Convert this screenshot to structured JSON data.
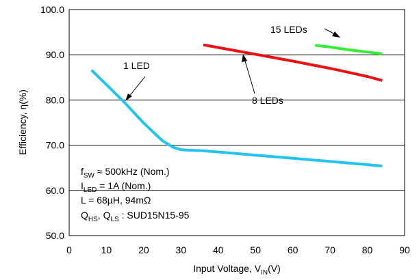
{
  "chart_data": {
    "type": "line",
    "xlabel": {
      "main": "Input Voltage, V",
      "sub": "IN",
      "suffix": "(V)"
    },
    "ylabel": "Efficiency, η(%)",
    "xlim": [
      0,
      90
    ],
    "ylim": [
      50,
      100
    ],
    "x_ticks": [
      "0",
      "10",
      "20",
      "30",
      "40",
      "50",
      "60",
      "70",
      "80",
      "90"
    ],
    "y_ticks": [
      "50.0",
      "60.0",
      "70.0",
      "80.0",
      "90.0",
      "100.0"
    ],
    "grid": {
      "horizontal": true,
      "vertical": false
    },
    "colors": {
      "1 LED": "#22c3ee",
      "8 LEDs": "#ee1111",
      "15 LEDs": "#33ee33"
    },
    "series": [
      {
        "name": "1 LED",
        "x": [
          6,
          10,
          15,
          20,
          25,
          28,
          30,
          32,
          35,
          40,
          50,
          60,
          70,
          80,
          84
        ],
        "y": [
          86.6,
          83.4,
          79.3,
          74.9,
          71.0,
          69.5,
          69.0,
          68.9,
          68.8,
          68.5,
          67.8,
          67.1,
          66.4,
          65.7,
          65.4
        ]
      },
      {
        "name": "8 LEDs",
        "x": [
          36,
          40,
          50,
          60,
          70,
          80,
          84
        ],
        "y": [
          92.2,
          91.6,
          90.1,
          88.6,
          87.0,
          85.2,
          84.3
        ]
      },
      {
        "name": "15 LEDs",
        "x": [
          66,
          70,
          75,
          80,
          84
        ],
        "y": [
          92.1,
          91.7,
          91.1,
          90.6,
          90.2
        ]
      }
    ],
    "annotations": {
      "led1": "1 LED",
      "led8": "8 LEDs",
      "led15": "15 LEDs"
    },
    "conditions": [
      {
        "main": "f",
        "sub": "SW",
        "rest": " ≈ 500kHz (Nom.)"
      },
      {
        "main": "I",
        "sub": "LED",
        "rest": " = 1A (Nom.)"
      },
      {
        "main": "L = 68µH, 94mΩ",
        "sub": "",
        "rest": ""
      },
      {
        "main": "Q",
        "sub": "HS",
        "rest": ", Q",
        "sub2": "LS",
        "rest2": " : SUD15N15-95"
      }
    ]
  }
}
